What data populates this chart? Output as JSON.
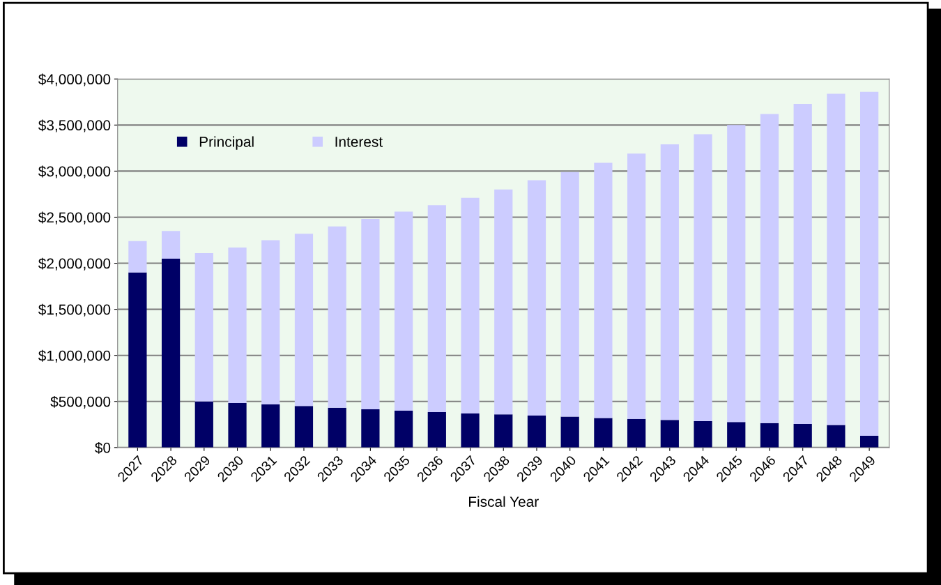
{
  "chart_data": {
    "type": "bar",
    "stacked": true,
    "xlabel": "Fiscal Year",
    "categories": [
      "2027",
      "2028",
      "2029",
      "2030",
      "2031",
      "2032",
      "2033",
      "2034",
      "2035",
      "2036",
      "2037",
      "2038",
      "2039",
      "2040",
      "2041",
      "2042",
      "2043",
      "2044",
      "2045",
      "2046",
      "2047",
      "2048",
      "2049"
    ],
    "series": [
      {
        "name": "Principal",
        "color": "#000066",
        "values": [
          1900000,
          2050000,
          500000,
          484000,
          467000,
          450000,
          432000,
          415000,
          400000,
          384000,
          370000,
          360000,
          346000,
          335000,
          320000,
          310000,
          300000,
          287000,
          277000,
          266000,
          256000,
          245000,
          128000
        ]
      },
      {
        "name": "Interest",
        "color": "#ccccff",
        "values": [
          340000,
          300000,
          1610000,
          1686000,
          1783000,
          1870000,
          1968000,
          2065000,
          2160000,
          2246000,
          2340000,
          2440000,
          2554000,
          2655000,
          2770000,
          2880000,
          2990000,
          3113000,
          3223000,
          3354000,
          3474000,
          3595000,
          3732000
        ]
      }
    ],
    "ylim": [
      0,
      4000000
    ],
    "yticks": [
      {
        "value": 0,
        "label": "$0"
      },
      {
        "value": 500000,
        "label": "$500,000"
      },
      {
        "value": 1000000,
        "label": "$1,000,000"
      },
      {
        "value": 1500000,
        "label": "$1,500,000"
      },
      {
        "value": 2000000,
        "label": "$2,000,000"
      },
      {
        "value": 2500000,
        "label": "$2,500,000"
      },
      {
        "value": 3000000,
        "label": "$3,000,000"
      },
      {
        "value": 3500000,
        "label": "$3,500,000"
      },
      {
        "value": 4000000,
        "label": "$4,000,000"
      }
    ],
    "grid": "y",
    "legend": "top left"
  }
}
